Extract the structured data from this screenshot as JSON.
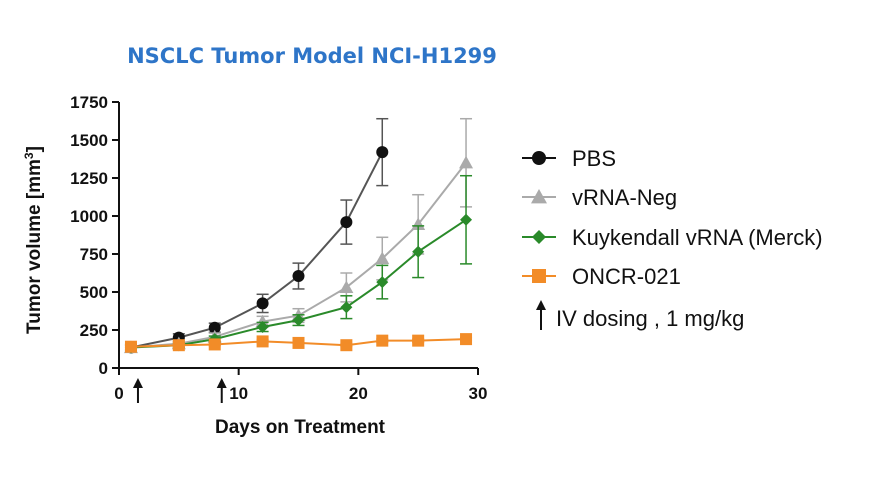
{
  "chart_data": {
    "type": "line",
    "title": "NSCLC Tumor Model NCI-H1299",
    "xlabel": "Days on Treatment",
    "ylabel": "Tumor volume [mm",
    "ylabel_superscript": "3",
    "ylabel_suffix": "]",
    "xlim": [
      0,
      30
    ],
    "ylim": [
      0,
      1750
    ],
    "xticks": [
      0,
      10,
      20,
      30
    ],
    "yticks": [
      0,
      250,
      500,
      750,
      1000,
      1250,
      1500,
      1750
    ],
    "legend_position": "right",
    "series": [
      {
        "name": "PBS",
        "color": "#555555",
        "marker": "circle",
        "x": [
          1,
          5,
          8,
          12,
          15,
          19,
          22
        ],
        "y": [
          135,
          200,
          265,
          425,
          605,
          960,
          1420
        ],
        "err": [
          20,
          25,
          30,
          60,
          85,
          145,
          220
        ]
      },
      {
        "name": "vRNA-Neg",
        "color": "#aaaaaa",
        "marker": "triangle",
        "x": [
          1,
          5,
          8,
          12,
          15,
          19,
          22,
          25,
          29
        ],
        "y": [
          135,
          160,
          205,
          305,
          345,
          530,
          720,
          945,
          1350
        ],
        "err": [
          15,
          20,
          25,
          35,
          45,
          95,
          140,
          195,
          290
        ]
      },
      {
        "name": "Kuykendall vRNA (Merck)",
        "color": "#2a8a2a",
        "marker": "diamond",
        "x": [
          1,
          5,
          8,
          12,
          15,
          19,
          22,
          25,
          29
        ],
        "y": [
          135,
          150,
          190,
          270,
          315,
          400,
          565,
          765,
          975
        ],
        "err": [
          15,
          15,
          20,
          30,
          35,
          75,
          110,
          170,
          290
        ]
      },
      {
        "name": "ONCR-021",
        "color": "#f28c28",
        "marker": "square",
        "x": [
          1,
          5,
          8,
          12,
          15,
          19,
          22,
          25,
          29
        ],
        "y": [
          140,
          150,
          155,
          175,
          165,
          150,
          180,
          180,
          190
        ],
        "err": [
          8,
          8,
          8,
          10,
          10,
          8,
          10,
          10,
          10
        ]
      }
    ],
    "dosing_days": [
      1,
      8
    ],
    "dosing_label": "IV dosing , 1 mg/kg"
  }
}
